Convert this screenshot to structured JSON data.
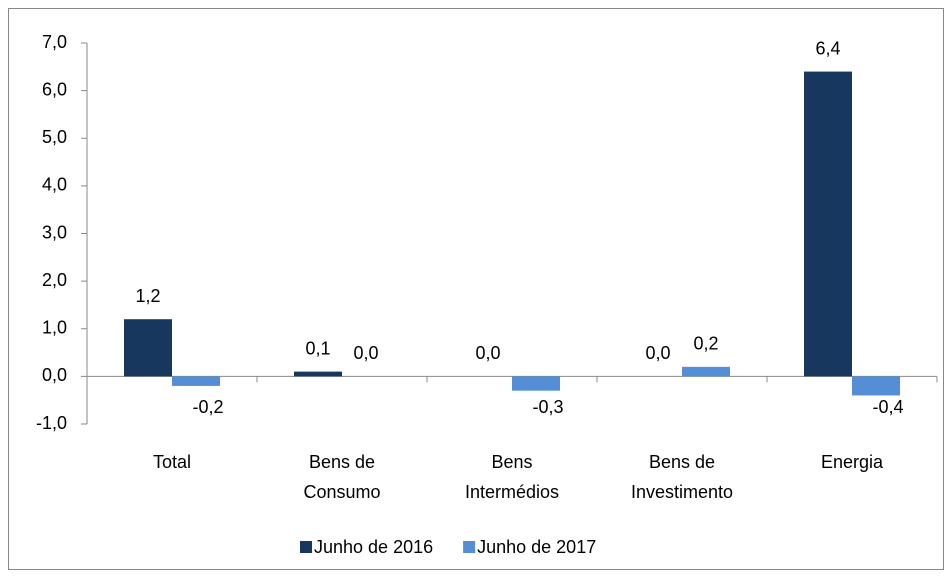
{
  "chart_data": {
    "type": "bar",
    "categories": [
      "Total",
      "Bens de Consumo",
      "Bens Intermédios",
      "Bens de Investimento",
      "Energia"
    ],
    "series": [
      {
        "name": "Junho de 2016",
        "color": "#17375e",
        "values": [
          1.2,
          0.1,
          0.0,
          0.0,
          6.4
        ],
        "value_labels": [
          "1,2",
          "0,1",
          "0,0",
          "0,0",
          "6,4"
        ]
      },
      {
        "name": "Junho de 2017",
        "color": "#558ed5",
        "values": [
          -0.2,
          0.0,
          -0.3,
          0.2,
          -0.4
        ],
        "value_labels": [
          "-0,2",
          "0,0",
          "-0,3",
          "0,2",
          "-0,4"
        ]
      }
    ],
    "ylim": [
      -1,
      7
    ],
    "yticks": [
      {
        "value": -1,
        "label": "-1,0"
      },
      {
        "value": 0,
        "label": "0,0"
      },
      {
        "value": 1,
        "label": "1,0"
      },
      {
        "value": 2,
        "label": "2,0"
      },
      {
        "value": 3,
        "label": "3,0"
      },
      {
        "value": 4,
        "label": "4,0"
      },
      {
        "value": 5,
        "label": "5,0"
      },
      {
        "value": 6,
        "label": "6,0"
      },
      {
        "value": 7,
        "label": "7,0"
      }
    ],
    "legend": "bottom"
  }
}
